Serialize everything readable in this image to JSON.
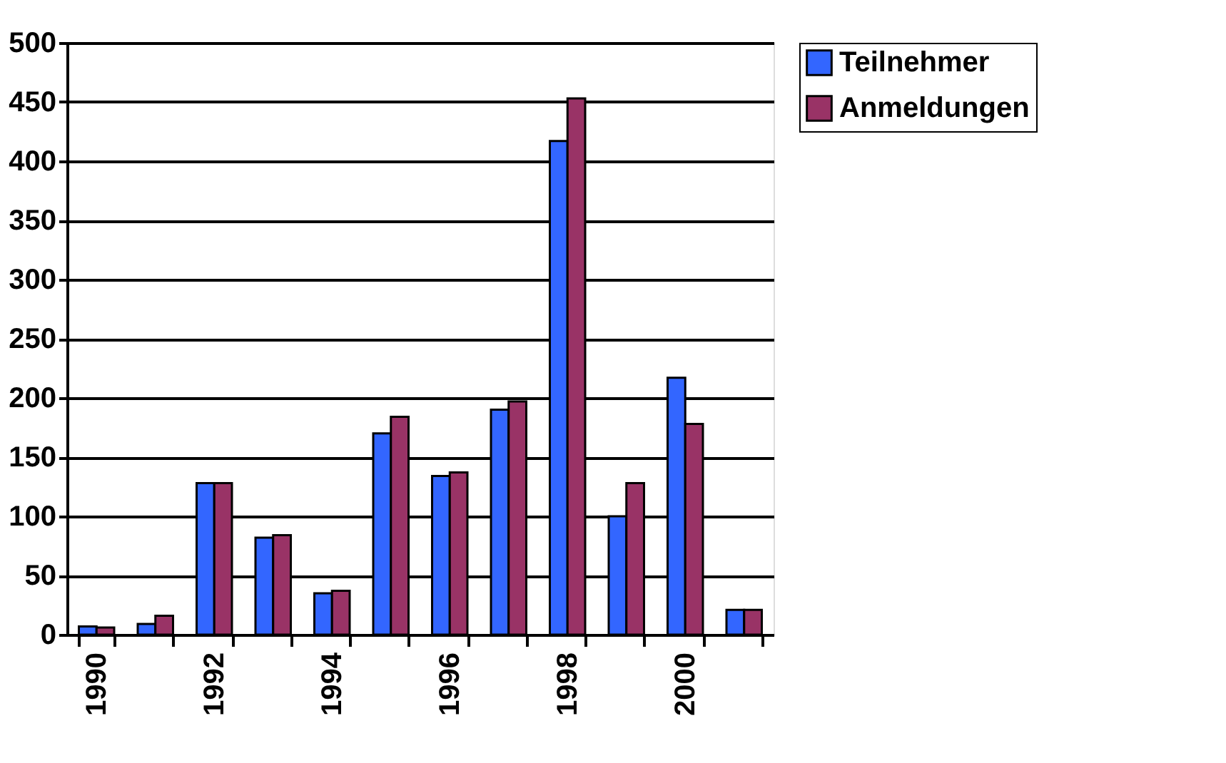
{
  "chart_data": {
    "type": "bar",
    "categories": [
      "1990",
      null,
      "1992",
      null,
      "1994",
      null,
      "1996",
      null,
      "1998",
      null,
      "2000",
      null
    ],
    "series": [
      {
        "name": "Teilnehmer",
        "color": "#3366ff",
        "values": [
          7,
          9,
          128,
          82,
          35,
          170,
          134,
          190,
          417,
          100,
          217,
          21
        ]
      },
      {
        "name": "Anmeldungen",
        "color": "#993366",
        "values": [
          6,
          16,
          128,
          84,
          37,
          184,
          137,
          197,
          453,
          128,
          178,
          21
        ]
      }
    ],
    "ylim": [
      0,
      500
    ],
    "yticks": [
      0,
      50,
      100,
      150,
      200,
      250,
      300,
      350,
      400,
      450,
      500
    ],
    "grid": "y",
    "legend": "right"
  }
}
